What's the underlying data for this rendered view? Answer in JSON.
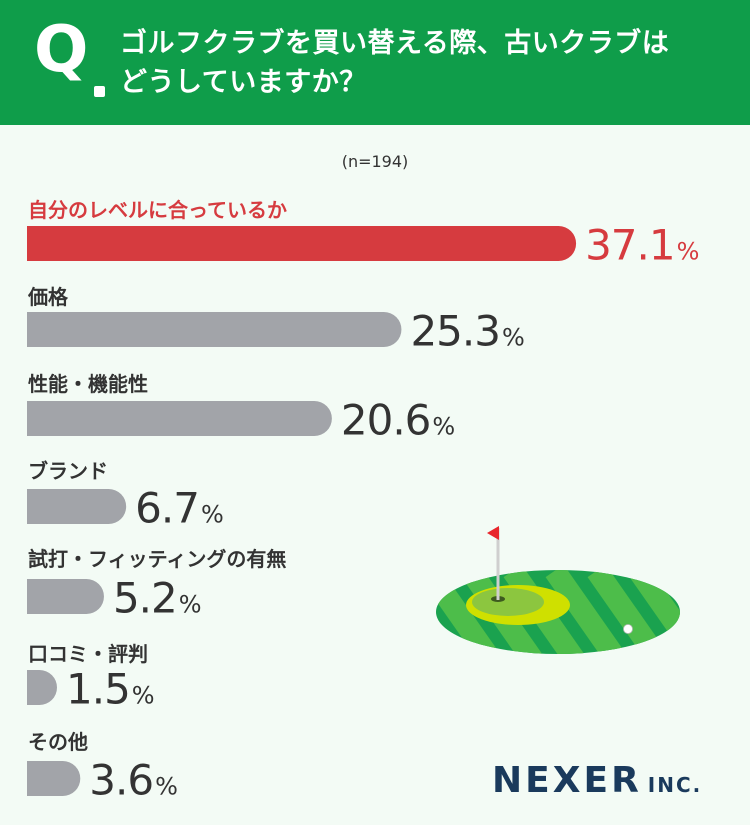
{
  "header": {
    "q_mark": "Q",
    "question_line1": "ゴルフクラブを買い替える際、古いクラブは",
    "question_line2": "どうしていますか？"
  },
  "sample_size": "(n=194)",
  "percent_unit": "%",
  "logo": {
    "main": "NEXER",
    "sub": "INC."
  },
  "colors": {
    "header_bg": "#0f9d4a",
    "highlight_bar": "#d63b3f",
    "bar": "#a2a4a9",
    "background": "#f3fbf5"
  },
  "chart_data": {
    "type": "bar",
    "orientation": "horizontal",
    "categories": [
      "自分のレベルに合っているか",
      "価格",
      "性能・機能性",
      "ブランド",
      "試打・フィッティングの有無",
      "口コミ・評判",
      "その他"
    ],
    "values": [
      37.1,
      25.3,
      20.6,
      6.7,
      5.2,
      1.5,
      3.6
    ],
    "value_labels": [
      "37.1",
      "25.3",
      "20.6",
      "6.7",
      "5.2",
      "1.5",
      "3.6"
    ],
    "highlight_index": 0,
    "legend": "none",
    "grid": false
  },
  "illustration": {
    "icon": "golf-green-flag-icon"
  }
}
